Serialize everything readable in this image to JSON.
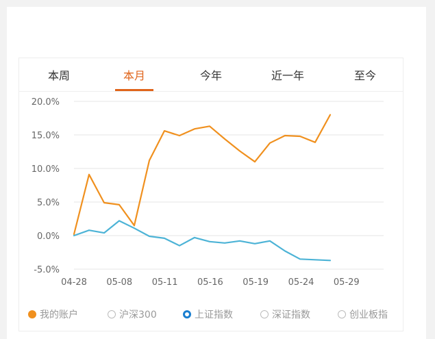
{
  "tabs": [
    {
      "label": "本周"
    },
    {
      "label": "本月"
    },
    {
      "label": "今年"
    },
    {
      "label": "近一年"
    },
    {
      "label": "至今"
    }
  ],
  "active_tab_index": 1,
  "colors": {
    "accent": "#e0641a",
    "account_line": "#f0901e",
    "index_line": "#4cb3d6",
    "grid": "#e6e6e6",
    "axis_text": "#666666"
  },
  "legend": [
    {
      "label": "我的账户",
      "state": "filled",
      "icon": "filled-orange-dot-icon"
    },
    {
      "label": "沪深300",
      "state": "unselected",
      "icon": "empty-radio-icon"
    },
    {
      "label": "上证指数",
      "state": "selected",
      "icon": "selected-radio-icon"
    },
    {
      "label": "深证指数",
      "state": "unselected",
      "icon": "empty-radio-icon"
    },
    {
      "label": "创业板指",
      "state": "unselected",
      "icon": "empty-radio-icon"
    }
  ],
  "chart_data": {
    "type": "line",
    "title": "",
    "xlabel": "",
    "ylabel": "",
    "x_tick_labels": [
      "04-28",
      "05-08",
      "05-11",
      "05-16",
      "05-19",
      "05-24",
      "05-29"
    ],
    "y_tick_labels": [
      "20.0%",
      "15.0%",
      "10.0%",
      "5.0%",
      "0.0%",
      "-5.0%"
    ],
    "ylim": [
      -5,
      20
    ],
    "grid": true,
    "legend_position": "bottom",
    "series": [
      {
        "name": "我的账户",
        "values": [
          0.2,
          9.1,
          4.9,
          4.6,
          1.5,
          11.2,
          15.6,
          14.9,
          15.9,
          16.3,
          14.4,
          12.6,
          11.0,
          13.8,
          14.9,
          14.8,
          13.9,
          18.0
        ]
      },
      {
        "name": "上证指数",
        "values": [
          0.0,
          0.8,
          0.4,
          2.2,
          1.1,
          -0.1,
          -0.4,
          -1.5,
          -0.3,
          -0.9,
          -1.1,
          -0.8,
          -1.2,
          -0.8,
          -2.3,
          -3.5,
          -3.6,
          -3.7
        ]
      }
    ]
  }
}
